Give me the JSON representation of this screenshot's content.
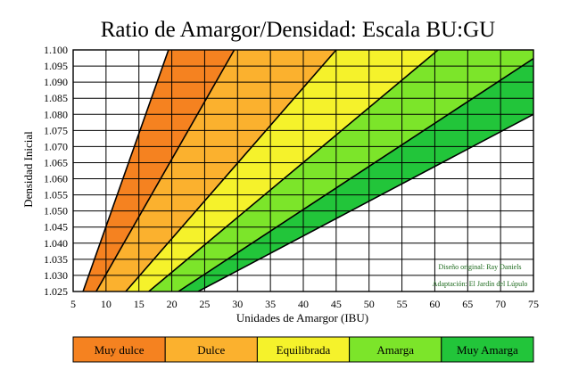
{
  "chart_data": {
    "type": "area",
    "title": "Ratio de Amargor/Densidad: Escala BU:GU",
    "xlabel": "Unidades de Amargor (IBU)",
    "ylabel": "Densidad Inicial",
    "xlim": [
      5,
      75
    ],
    "ylim": [
      1.025,
      1.1
    ],
    "x_ticks": [
      5,
      10,
      15,
      20,
      25,
      30,
      35,
      40,
      45,
      50,
      55,
      60,
      65,
      70,
      75
    ],
    "y_ticks": [
      "1.025",
      "1.030",
      "1.035",
      "1.040",
      "1.045",
      "1.050",
      "1.055",
      "1.060",
      "1.065",
      "1.070",
      "1.075",
      "1.080",
      "1.085",
      "1.090",
      "1.095",
      "1.100"
    ],
    "grid": true,
    "boundary_lines": [
      {
        "ibu_at_1_025": 6.5,
        "ibu_at_1_100": 19.5
      },
      {
        "ibu_at_1_025": 8.5,
        "ibu_at_1_100": 29.5
      },
      {
        "ibu_at_1_025": 13,
        "ibu_at_1_100": 45
      },
      {
        "ibu_at_1_025": 16.5,
        "ibu_at_1_100": 60.5
      },
      {
        "ibu_at_1_025": 21,
        "ibu_at_1_100": 77
      },
      {
        "ibu_at_1_025": 24,
        "ibu_at_1_080": 75
      }
    ],
    "zones": [
      {
        "name": "Muy dulce",
        "color": "#f58220"
      },
      {
        "name": "Dulce",
        "color": "#fbb12e"
      },
      {
        "name": "Equilibrada",
        "color": "#f5f22b"
      },
      {
        "name": "Amarga",
        "color": "#7ce52a"
      },
      {
        "name": "Muy Amarga",
        "color": "#22c53a"
      }
    ],
    "credits": [
      "Diseño original: Ray Daniels",
      "Adaptación: El Jardín del Lúpulo"
    ]
  }
}
